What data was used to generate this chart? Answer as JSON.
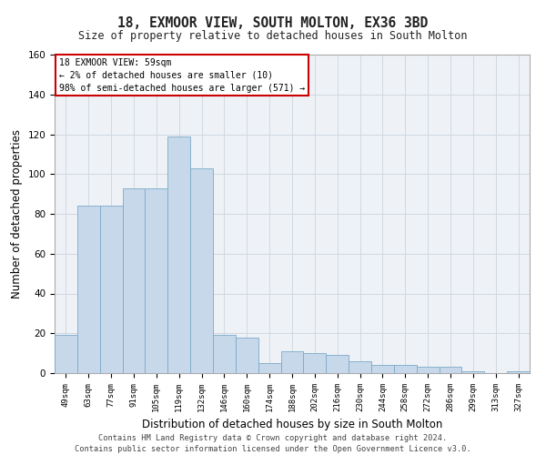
{
  "title1": "18, EXMOOR VIEW, SOUTH MOLTON, EX36 3BD",
  "title2": "Size of property relative to detached houses in South Molton",
  "xlabel": "Distribution of detached houses by size in South Molton",
  "ylabel": "Number of detached properties",
  "categories": [
    "49sqm",
    "63sqm",
    "77sqm",
    "91sqm",
    "105sqm",
    "119sqm",
    "132sqm",
    "146sqm",
    "160sqm",
    "174sqm",
    "188sqm",
    "202sqm",
    "216sqm",
    "230sqm",
    "244sqm",
    "258sqm",
    "272sqm",
    "286sqm",
    "299sqm",
    "313sqm",
    "327sqm"
  ],
  "values": [
    19,
    84,
    84,
    93,
    93,
    119,
    103,
    19,
    18,
    5,
    11,
    10,
    9,
    6,
    4,
    4,
    3,
    3,
    1,
    0,
    1
  ],
  "bar_color": "#c8d8eb",
  "bar_edge_color": "#7aaac8",
  "annotation_text_line1": "18 EXMOOR VIEW: 59sqm",
  "annotation_text_line2": "← 2% of detached houses are smaller (10)",
  "annotation_text_line3": "98% of semi-detached houses are larger (571) →",
  "annotation_box_color": "#ffffff",
  "annotation_border_color": "#cc0000",
  "footer1": "Contains HM Land Registry data © Crown copyright and database right 2024.",
  "footer2": "Contains public sector information licensed under the Open Government Licence v3.0.",
  "ylim": [
    0,
    160
  ],
  "yticks": [
    0,
    20,
    40,
    60,
    80,
    100,
    120,
    140,
    160
  ],
  "grid_color": "#d0d8e0",
  "bg_color": "#eef2f7"
}
